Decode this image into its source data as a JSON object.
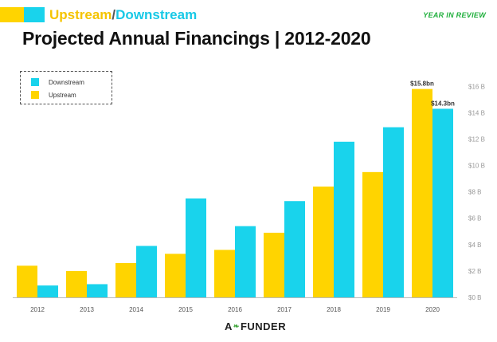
{
  "header": {
    "subtitle_up": "Upstream",
    "subtitle_sep": "/",
    "subtitle_down": "Downstream",
    "tag": "YEAR IN REVIEW",
    "title": "Projected Annual Financings | 2012-2020"
  },
  "colors": {
    "upstream": "#FFD400",
    "downstream": "#19D3EC",
    "accent_green": "#1FAF3C"
  },
  "chart_data": {
    "type": "bar",
    "title": "Projected Annual Financings | 2012-2020",
    "categories": [
      "2012",
      "2013",
      "2014",
      "2015",
      "2016",
      "2017",
      "2018",
      "2019",
      "2020"
    ],
    "series": [
      {
        "name": "Upstream",
        "color": "#FFD400",
        "values": [
          2.4,
          2.0,
          2.6,
          3.3,
          3.6,
          4.9,
          8.4,
          9.5,
          15.8
        ]
      },
      {
        "name": "Downstream",
        "color": "#19D3EC",
        "values": [
          0.9,
          1.0,
          3.9,
          7.5,
          5.4,
          7.3,
          11.8,
          12.9,
          14.3
        ]
      }
    ],
    "y_ticks": [
      0,
      2,
      4,
      6,
      8,
      10,
      12,
      14,
      16
    ],
    "y_tick_labels": [
      "$0 B",
      "$2 B",
      "$4 B",
      "$6 B",
      "$8 B",
      "$10 B",
      "$12 B",
      "$14 B",
      "$16 B"
    ],
    "ylim": [
      0,
      16.2
    ],
    "y_axis_position": "right",
    "grid": false,
    "legend_position": "top-left",
    "annotations": [
      {
        "category": "2020",
        "series": "Upstream",
        "text": "$15.8bn"
      },
      {
        "category": "2020",
        "series": "Downstream",
        "text": "$14.3bn"
      }
    ]
  },
  "legend": {
    "items": [
      {
        "label": "Downstream",
        "color": "#19D3EC"
      },
      {
        "label": "Upstream",
        "color": "#FFD400"
      }
    ]
  },
  "footer": {
    "logo_left": "A",
    "logo_right": "FUNDER",
    "logo_icon": "leaf-icon"
  }
}
